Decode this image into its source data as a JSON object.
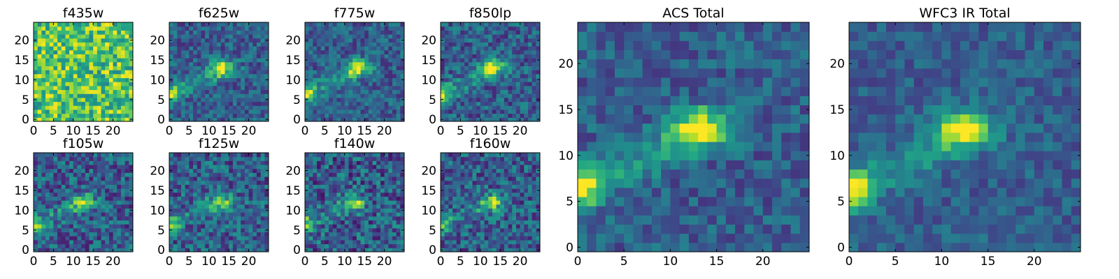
{
  "colormap": "viridis",
  "image_size": [
    25,
    25
  ],
  "chart_data": [
    {
      "type": "heatmap",
      "title": "f435w",
      "xticks": [
        0,
        5,
        10,
        15,
        20
      ],
      "yticks": [
        0,
        5,
        10,
        15,
        20
      ],
      "xlim": [
        0,
        25
      ],
      "ylim": [
        0,
        25
      ],
      "source_peak": [
        13,
        13
      ],
      "source_strength": 0.0,
      "edge_source": 0.0,
      "noise": 1.0
    },
    {
      "type": "heatmap",
      "title": "f625w",
      "xticks": [
        0,
        5,
        10,
        15,
        20
      ],
      "yticks": [
        0,
        5,
        10,
        15,
        20
      ],
      "xlim": [
        0,
        25
      ],
      "ylim": [
        0,
        25
      ],
      "source_peak": [
        13,
        13
      ],
      "source_strength": 0.85,
      "edge_source": 0.6,
      "noise": 0.35
    },
    {
      "type": "heatmap",
      "title": "f775w",
      "xticks": [
        0,
        5,
        10,
        15,
        20
      ],
      "yticks": [
        0,
        5,
        10,
        15,
        20
      ],
      "xlim": [
        0,
        25
      ],
      "ylim": [
        0,
        25
      ],
      "source_peak": [
        13,
        13
      ],
      "source_strength": 0.85,
      "edge_source": 0.65,
      "noise": 0.35
    },
    {
      "type": "heatmap",
      "title": "f850lp",
      "xticks": [
        0,
        5,
        10,
        15,
        20
      ],
      "yticks": [
        0,
        5,
        10,
        15,
        20
      ],
      "xlim": [
        0,
        25
      ],
      "ylim": [
        0,
        25
      ],
      "source_peak": [
        13,
        13
      ],
      "source_strength": 0.8,
      "edge_source": 0.6,
      "noise": 0.4
    },
    {
      "type": "heatmap",
      "title": "f105w",
      "xticks": [
        0,
        5,
        10,
        15,
        20
      ],
      "yticks": [
        0,
        5,
        10,
        15,
        20
      ],
      "xlim": [
        0,
        25
      ],
      "ylim": [
        0,
        25
      ],
      "source_peak": [
        12,
        12
      ],
      "source_strength": 0.6,
      "edge_source": 0.55,
      "noise": 0.45
    },
    {
      "type": "heatmap",
      "title": "f125w",
      "xticks": [
        0,
        5,
        10,
        15,
        20
      ],
      "yticks": [
        0,
        5,
        10,
        15,
        20
      ],
      "xlim": [
        0,
        25
      ],
      "ylim": [
        0,
        25
      ],
      "source_peak": [
        13,
        12
      ],
      "source_strength": 0.6,
      "edge_source": 0.5,
      "noise": 0.45
    },
    {
      "type": "heatmap",
      "title": "f140w",
      "xticks": [
        0,
        5,
        10,
        15,
        20
      ],
      "yticks": [
        0,
        5,
        10,
        15,
        20
      ],
      "xlim": [
        0,
        25
      ],
      "ylim": [
        0,
        25
      ],
      "source_peak": [
        12,
        12
      ],
      "source_strength": 0.55,
      "edge_source": 0.55,
      "noise": 0.5
    },
    {
      "type": "heatmap",
      "title": "f160w",
      "xticks": [
        0,
        5,
        10,
        15,
        20
      ],
      "yticks": [
        0,
        5,
        10,
        15,
        20
      ],
      "xlim": [
        0,
        25
      ],
      "ylim": [
        0,
        25
      ],
      "source_peak": [
        13,
        12
      ],
      "source_strength": 0.6,
      "edge_source": 0.5,
      "noise": 0.45
    },
    {
      "type": "heatmap",
      "title": "ACS Total",
      "xticks": [
        0,
        5,
        10,
        15,
        20
      ],
      "yticks": [
        0,
        5,
        10,
        15,
        20
      ],
      "xlim": [
        0,
        25
      ],
      "ylim": [
        0,
        25
      ],
      "source_peak": [
        13,
        13
      ],
      "source_strength": 0.95,
      "edge_source": 0.75,
      "noise": 0.3
    },
    {
      "type": "heatmap",
      "title": "WFC3 IR Total",
      "xticks": [
        0,
        5,
        10,
        15,
        20
      ],
      "yticks": [
        0,
        5,
        10,
        15,
        20
      ],
      "xlim": [
        0,
        25
      ],
      "ylim": [
        0,
        25
      ],
      "source_peak": [
        12,
        13
      ],
      "source_strength": 0.85,
      "edge_source": 0.7,
      "noise": 0.25
    }
  ]
}
